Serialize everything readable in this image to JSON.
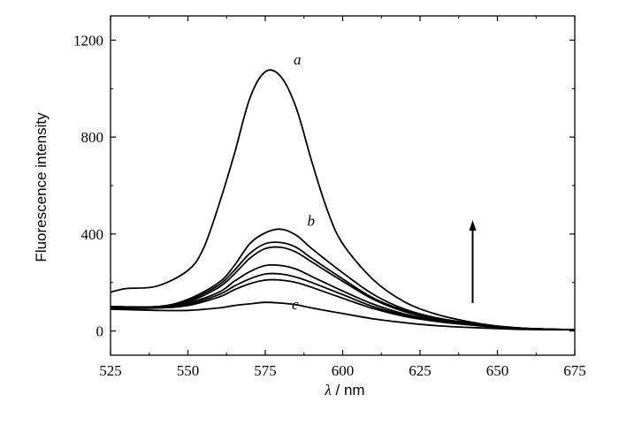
{
  "chart_data": {
    "type": "line",
    "title": "",
    "xlabel_symbol": "λ",
    "xlabel_unit": "/ nm",
    "ylabel": "Fluorescence intensity",
    "xlim": [
      525,
      675
    ],
    "ylim": [
      -100,
      1300
    ],
    "x_ticks": [
      525,
      550,
      575,
      600,
      625,
      650,
      675
    ],
    "y_ticks": [
      0,
      400,
      800,
      1200
    ],
    "grid": false,
    "legend": "none",
    "series": [
      {
        "label": "a",
        "x": [
          525,
          530,
          540,
          550,
          555,
          560,
          565,
          570,
          575,
          580,
          585,
          590,
          595,
          600,
          610,
          620,
          630,
          640,
          650,
          660,
          675
        ],
        "y": [
          160,
          175,
          185,
          250,
          340,
          520,
          730,
          960,
          1070,
          1050,
          920,
          700,
          500,
          360,
          210,
          120,
          70,
          40,
          20,
          10,
          5
        ]
      },
      {
        "label": "b",
        "x": [
          525,
          540,
          550,
          560,
          565,
          570,
          575,
          580,
          585,
          590,
          600,
          610,
          620,
          630,
          640,
          650,
          660,
          675
        ],
        "y": [
          100,
          100,
          130,
          200,
          270,
          360,
          405,
          420,
          395,
          340,
          240,
          150,
          90,
          55,
          35,
          20,
          10,
          5
        ]
      },
      {
        "label": "",
        "x": [
          525,
          540,
          550,
          560,
          565,
          570,
          575,
          580,
          585,
          590,
          600,
          610,
          620,
          630,
          640,
          650,
          660,
          675
        ],
        "y": [
          100,
          100,
          125,
          190,
          250,
          320,
          360,
          365,
          345,
          300,
          215,
          135,
          85,
          52,
          33,
          19,
          10,
          5
        ]
      },
      {
        "label": "",
        "x": [
          525,
          540,
          550,
          560,
          565,
          570,
          575,
          580,
          585,
          590,
          600,
          610,
          620,
          630,
          640,
          650,
          660,
          675
        ],
        "y": [
          100,
          100,
          120,
          180,
          235,
          300,
          340,
          345,
          325,
          285,
          205,
          130,
          80,
          50,
          32,
          18,
          10,
          5
        ]
      },
      {
        "label": "",
        "x": [
          525,
          540,
          550,
          560,
          565,
          570,
          575,
          580,
          585,
          590,
          600,
          610,
          620,
          630,
          640,
          650,
          660,
          675
        ],
        "y": [
          100,
          100,
          115,
          160,
          205,
          245,
          270,
          270,
          255,
          225,
          165,
          110,
          70,
          45,
          30,
          17,
          9,
          5
        ]
      },
      {
        "label": "",
        "x": [
          525,
          540,
          550,
          560,
          565,
          570,
          575,
          580,
          585,
          590,
          600,
          610,
          620,
          630,
          640,
          650,
          660,
          675
        ],
        "y": [
          95,
          95,
          110,
          150,
          185,
          215,
          235,
          235,
          222,
          200,
          150,
          100,
          65,
          42,
          28,
          16,
          9,
          5
        ]
      },
      {
        "label": "",
        "x": [
          525,
          540,
          550,
          560,
          565,
          570,
          575,
          580,
          585,
          590,
          600,
          610,
          620,
          630,
          640,
          650,
          660,
          675
        ],
        "y": [
          95,
          95,
          105,
          140,
          170,
          195,
          210,
          210,
          200,
          180,
          135,
          92,
          60,
          40,
          26,
          15,
          8,
          5
        ]
      },
      {
        "label": "c",
        "x": [
          525,
          540,
          550,
          560,
          565,
          570,
          575,
          580,
          585,
          590,
          600,
          610,
          620,
          630,
          640,
          650,
          660,
          675
        ],
        "y": [
          90,
          85,
          85,
          95,
          105,
          112,
          118,
          115,
          108,
          95,
          72,
          50,
          34,
          22,
          15,
          10,
          6,
          5
        ]
      }
    ],
    "annotations": [
      {
        "type": "arrow",
        "direction": "up",
        "x": 642,
        "y_from": 115,
        "y_to": 450
      }
    ]
  }
}
